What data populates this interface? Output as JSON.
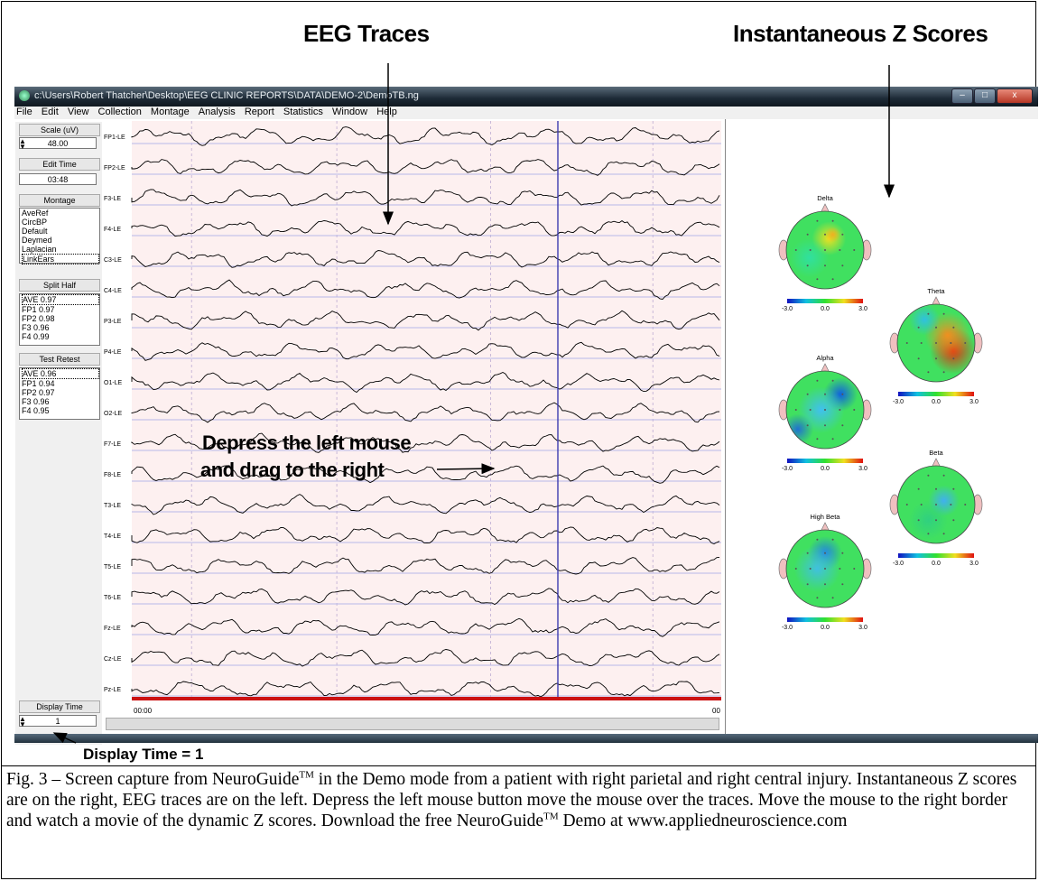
{
  "callouts": {
    "eeg_traces": "EEG Traces",
    "z_scores": "Instantaneous Z Scores",
    "drag_line1": "Depress the left mouse",
    "drag_line2": "and drag to the right",
    "display_time": "Display Time = 1"
  },
  "window": {
    "title": "c:\\Users\\Robert Thatcher\\Desktop\\EEG CLINIC REPORTS\\DATA\\DEMO-2\\DemoTB.ng",
    "minimize": "–",
    "maximize": "□",
    "close": "x"
  },
  "menu": [
    "File",
    "Edit",
    "View",
    "Collection",
    "Montage",
    "Analysis",
    "Report",
    "Statistics",
    "Window",
    "Help"
  ],
  "left_panel": {
    "scale_label": "Scale (uV)",
    "scale_value": "48.00",
    "edit_time_label": "Edit Time",
    "edit_time_value": "03:48",
    "montage_label": "Montage",
    "montage_items": [
      "AveRef",
      "CircBP",
      "Default",
      "Deymed",
      "Laplacian",
      "LinkEars"
    ],
    "split_half_label": "Split Half",
    "split_half_items": [
      "AVE 0.97",
      "FP1 0.97",
      "FP2 0.98",
      "F3 0.96",
      "F4 0.99"
    ],
    "test_retest_label": "Test Retest",
    "test_retest_items": [
      "AVE 0.96",
      "FP1 0.94",
      "FP2 0.97",
      "F3 0.96",
      "F4 0.95"
    ],
    "display_time_label": "Display Time",
    "display_time_value": "1"
  },
  "eeg": {
    "channels": [
      "FP1-LE",
      "FP2-LE",
      "F3-LE",
      "F4-LE",
      "C3-LE",
      "C4-LE",
      "P3-LE",
      "P4-LE",
      "O1-LE",
      "O2-LE",
      "F7-LE",
      "F8-LE",
      "T3-LE",
      "T4-LE",
      "T5-LE",
      "T6-LE",
      "Fz-LE",
      "Cz-LE",
      "Pz-LE"
    ],
    "time_start": "00:00",
    "time_end": "00",
    "colors": {
      "background": "#fdf0f0",
      "trace": "#000000",
      "gridline": "#b8b8e8",
      "cursor": "#3c3cb0",
      "timebar": "#cc1111"
    }
  },
  "z_maps": {
    "bands": [
      {
        "name": "Delta",
        "ticks": [
          "-3.0",
          "0.0",
          "3.0"
        ]
      },
      {
        "name": "Theta",
        "ticks": [
          "-3.0",
          "0.0",
          "3.0"
        ]
      },
      {
        "name": "Alpha",
        "ticks": [
          "-3.0",
          "0.0",
          "3.0"
        ]
      },
      {
        "name": "Beta",
        "ticks": [
          "-3.0",
          "0.0",
          "3.0"
        ]
      },
      {
        "name": "High Beta",
        "ticks": [
          "-3.0",
          "0.0",
          "3.0"
        ]
      }
    ]
  },
  "caption": {
    "p1": "Fig. 3 – Screen capture from NeuroGuide",
    "tm1": "TM",
    "p2": " in the Demo mode from a patient with right parietal and right central injury.   Instantaneous Z scores are on the right, EEG traces are on the left.  Depress the left mouse button move the mouse over the traces.   Move the mouse to the right border and watch a movie of the dynamic Z scores.  Download the free NeuroGuide",
    "tm2": "TM",
    "p3": " Demo at www.appliedneuroscience.com"
  }
}
